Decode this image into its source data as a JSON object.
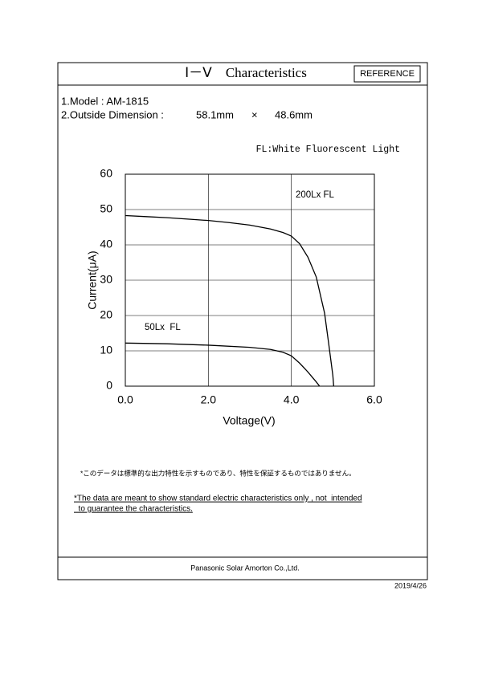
{
  "header": {
    "title": "Ⅰ－Ⅴ　Characteristics",
    "badge": "REFERENCE"
  },
  "specs": {
    "model": "1.Model : AM-1815",
    "dimension_label": "2.Outside Dimension :",
    "width": "58.1mm",
    "times": "×",
    "height": "48.6mm"
  },
  "chart_data": {
    "type": "line",
    "annotation": "FL:White Fluorescent Light",
    "x_label": "Voltage(V)",
    "y_label": "Current(μA)",
    "xlim": [
      0,
      6
    ],
    "ylim": [
      0,
      60
    ],
    "xticks": [
      {
        "value": 0,
        "label": "0.0"
      },
      {
        "value": 2,
        "label": "2.0"
      },
      {
        "value": 4,
        "label": "4.0"
      },
      {
        "value": 6,
        "label": "6.0"
      }
    ],
    "yticks": [
      0,
      10,
      20,
      30,
      40,
      50,
      60
    ],
    "grid": true,
    "series": [
      {
        "name": "200Lx FL",
        "color": "#000000",
        "x": [
          0,
          0.5,
          1,
          1.5,
          2,
          2.5,
          3,
          3.5,
          3.8,
          4.0,
          4.2,
          4.4,
          4.6,
          4.8,
          4.9,
          5.0,
          5.02
        ],
        "values": [
          48.3,
          48.0,
          47.7,
          47.3,
          46.9,
          46.3,
          45.6,
          44.5,
          43.5,
          42.5,
          40.3,
          36.5,
          30.9,
          20.7,
          12,
          3,
          0
        ]
      },
      {
        "name": "50Lx  FL",
        "color": "#000000",
        "x": [
          0,
          1,
          2,
          3,
          3.5,
          3.8,
          4.0,
          4.2,
          4.4,
          4.6,
          4.68
        ],
        "values": [
          12.2,
          12.0,
          11.6,
          11.0,
          10.4,
          9.6,
          8.6,
          6.5,
          4.0,
          1.2,
          0
        ]
      }
    ]
  },
  "notes": {
    "japanese": "*このデータは標準的な出力特性を示すものであり、特性を保証するものではありません。",
    "english_1": "*The data are meant to show standard electric characteristics only , not  intended",
    "english_2": "  to guarantee the characteristics."
  },
  "footer": {
    "company": "Panasonic Solar Amorton Co.,Ltd.",
    "date": "2019/4/26"
  }
}
